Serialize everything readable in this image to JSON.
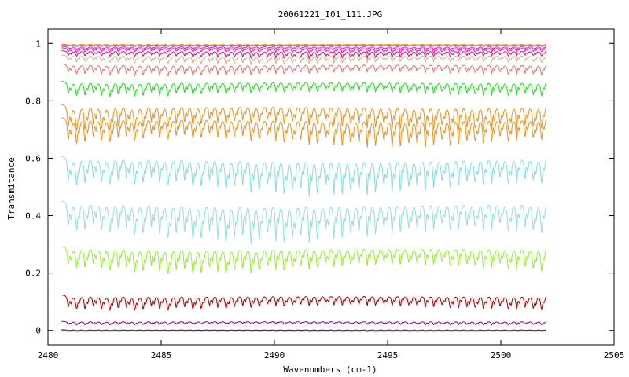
{
  "chart_data": {
    "type": "line",
    "title": "20061221_I01_111.JPG",
    "xlabel": "Wavenumbers (cm-1)",
    "ylabel": "Transmitance",
    "xlim": [
      2480,
      2505
    ],
    "ylim": [
      -0.05,
      1.05
    ],
    "x_ticks": [
      2480,
      2485,
      2490,
      2495,
      2500,
      2505
    ],
    "y_ticks": [
      0,
      0.2,
      0.4,
      0.6,
      0.8,
      1
    ],
    "x_tick_labels": [
      "2480",
      "2485",
      "2490",
      "2495",
      "2500",
      "2505"
    ],
    "y_tick_labels": [
      "0",
      "0.2",
      "0.4",
      "0.6",
      "0.8",
      "1"
    ],
    "grid": false,
    "x_range_data": [
      2480.6,
      2502.0
    ],
    "series": [
      {
        "color": "#ff7f0e",
        "baseline": 0.997,
        "depth": 0.004
      },
      {
        "color": "#888888",
        "baseline": 0.995,
        "depth": 0.006
      },
      {
        "color": "#ff00ff",
        "baseline": 0.99,
        "depth": 0.012
      },
      {
        "color": "#ff1493",
        "baseline": 0.985,
        "depth": 0.018
      },
      {
        "color": "#c71585",
        "baseline": 0.975,
        "depth": 0.025
      },
      {
        "color": "#d2b48c",
        "baseline": 0.96,
        "depth": 0.03
      },
      {
        "color": "#e57373",
        "baseline": 0.93,
        "depth": 0.04
      },
      {
        "color": "#22dd22",
        "baseline": 0.87,
        "depth": 0.05
      },
      {
        "color": "#e69524",
        "baseline": 0.79,
        "depth": 0.09
      },
      {
        "color": "#e69524",
        "baseline": 0.745,
        "depth": 0.1
      },
      {
        "color": "#88dddd",
        "baseline": 0.61,
        "depth": 0.13
      },
      {
        "color": "#99dddd",
        "baseline": 0.455,
        "depth": 0.14
      },
      {
        "color": "#99ee33",
        "baseline": 0.295,
        "depth": 0.09
      },
      {
        "color": "#aa0000",
        "baseline": 0.125,
        "depth": 0.05
      },
      {
        "color": "#880088",
        "baseline": 0.032,
        "depth": 0.012
      },
      {
        "color": "#000080",
        "baseline": 0.002,
        "depth": 0.003
      },
      {
        "color": "#777777",
        "baseline": -0.002,
        "depth": 0.002
      },
      {
        "color": "#996633",
        "baseline": 0.0,
        "depth": 0.002
      }
    ]
  }
}
